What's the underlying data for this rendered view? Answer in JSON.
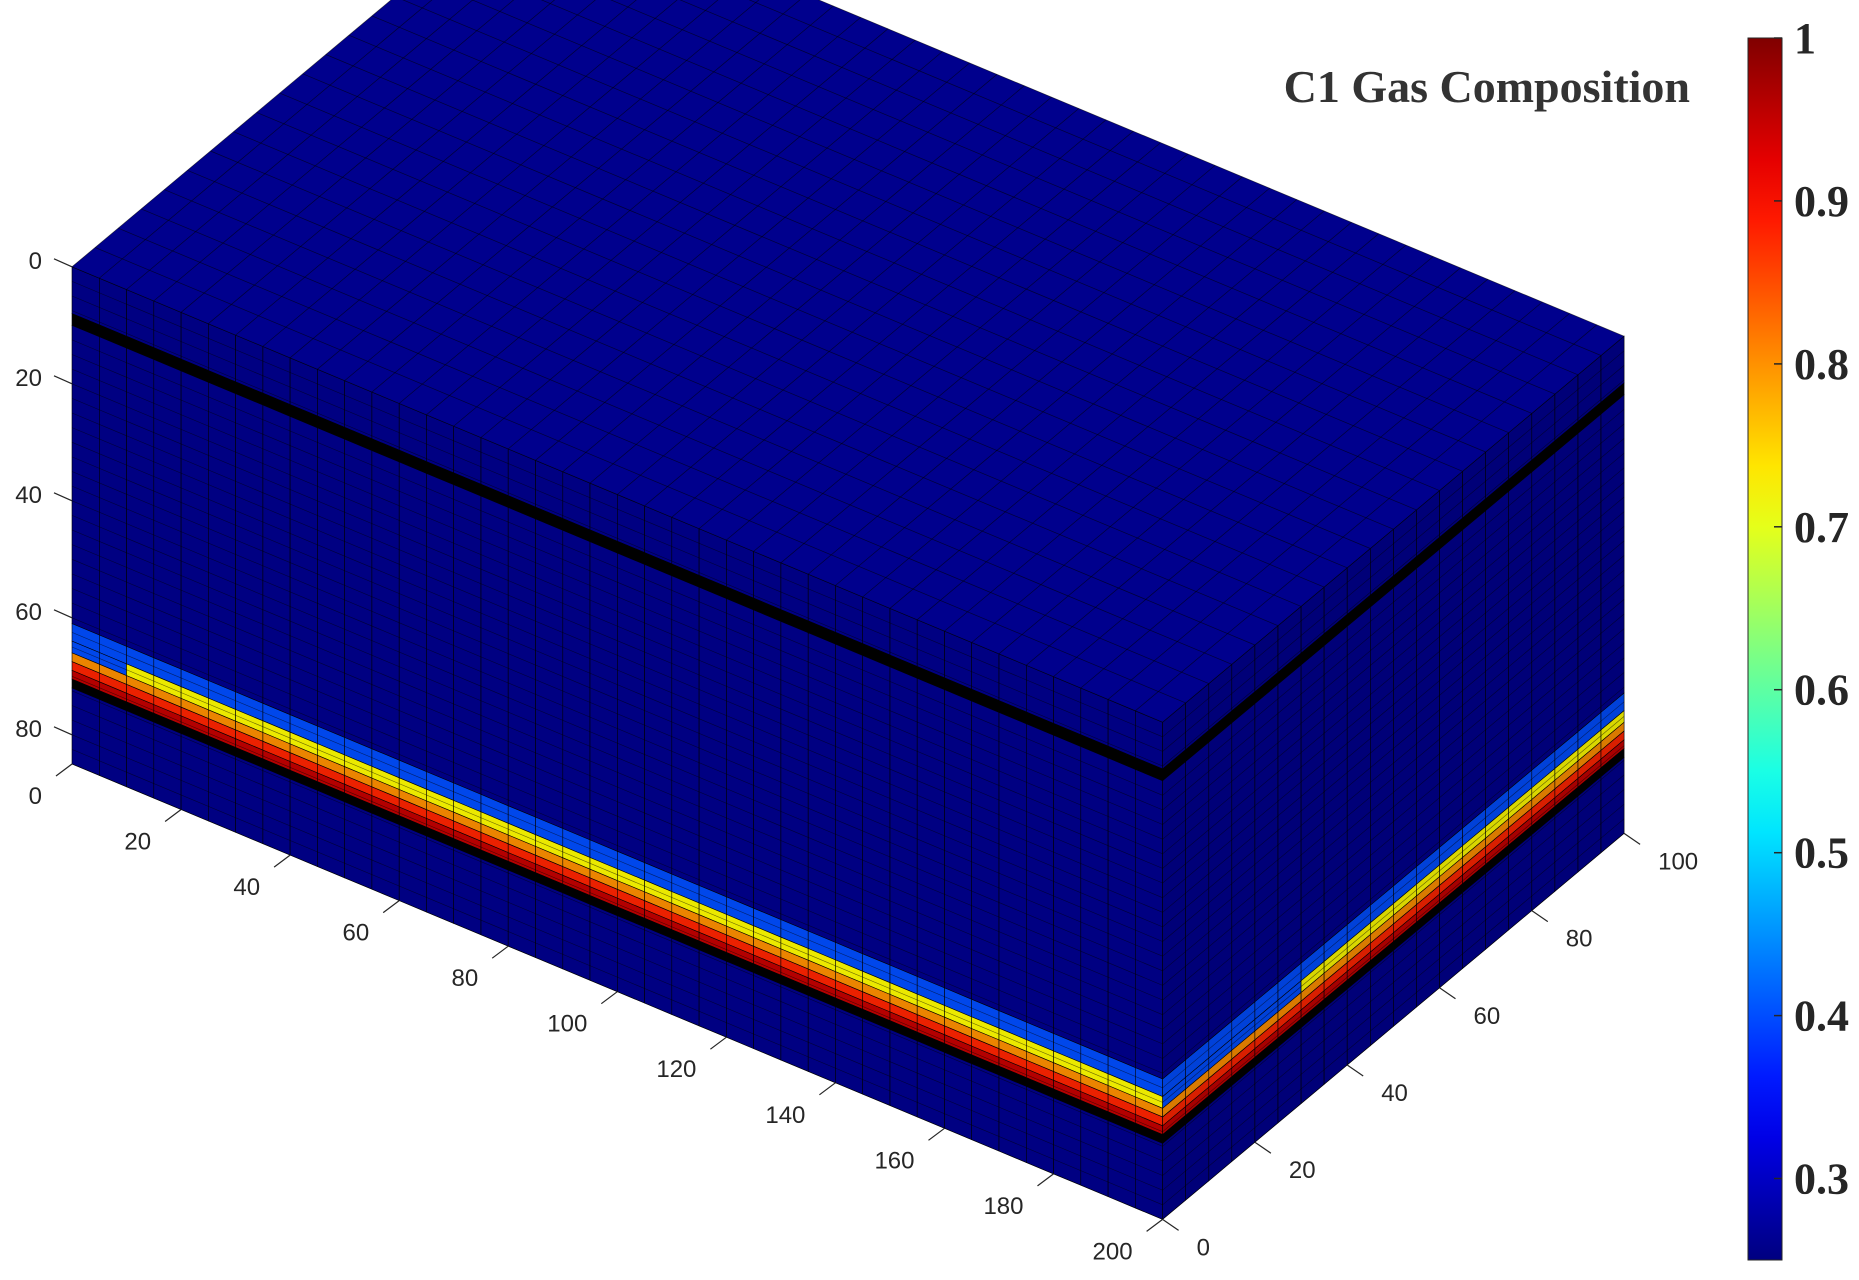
{
  "chart_data": {
    "type": "heatmap",
    "title": "C1 Gas Composition",
    "x_axis": {
      "ticks": [
        0,
        20,
        40,
        60,
        80,
        100,
        120,
        140,
        160,
        180,
        200
      ],
      "range": [
        0,
        200
      ]
    },
    "y_axis": {
      "ticks": [
        0,
        20,
        40,
        60,
        80,
        100
      ],
      "range": [
        0,
        100
      ]
    },
    "z_axis": {
      "ticks": [
        0,
        20,
        40,
        60,
        80
      ],
      "range": [
        0,
        85
      ],
      "reversed": true
    },
    "colorbar": {
      "ticks": [
        0.3,
        0.4,
        0.5,
        0.6,
        0.7,
        0.8,
        0.9,
        1
      ],
      "tick_labels": [
        "0.3",
        "0.4",
        "0.5",
        "0.6",
        "0.7",
        "0.8",
        "0.9",
        "1"
      ],
      "range": [
        0.25,
        1.0
      ],
      "colormap": "jet",
      "position": "right"
    },
    "grid": {
      "nx": 40,
      "ny": 20
    },
    "layers": [
      {
        "z_top": 0,
        "z_bottom": 8,
        "value": 0.26
      },
      {
        "z_top": 8,
        "z_bottom": 10,
        "value": 0.0
      },
      {
        "z_top": 10,
        "z_bottom": 61,
        "value": 0.26
      },
      {
        "z_top": 61,
        "z_bottom": 64,
        "value": 0.4
      },
      {
        "z_top": 64,
        "z_bottom": 66,
        "value": 0.72
      },
      {
        "z_top": 66,
        "z_bottom": 67.5,
        "value": 0.8
      },
      {
        "z_top": 67.5,
        "z_bottom": 69,
        "value": 0.88
      },
      {
        "z_top": 69,
        "z_bottom": 70.5,
        "value": 0.95
      },
      {
        "z_top": 70.5,
        "z_bottom": 72,
        "value": 0.0
      },
      {
        "z_top": 72,
        "z_bottom": 85,
        "value": 0.26
      }
    ],
    "front_face_anomaly": {
      "x_range": [
        0,
        10
      ],
      "layers_override": [
        {
          "z_top": 61,
          "z_bottom": 64,
          "value": 0.4
        },
        {
          "z_top": 64,
          "z_bottom": 66,
          "value": 0.4
        }
      ]
    },
    "side_face_anomaly": {
      "y_range": [
        0,
        30
      ],
      "layers_override": [
        {
          "z_top": 64,
          "z_bottom": 66,
          "value": 0.4
        }
      ]
    }
  }
}
